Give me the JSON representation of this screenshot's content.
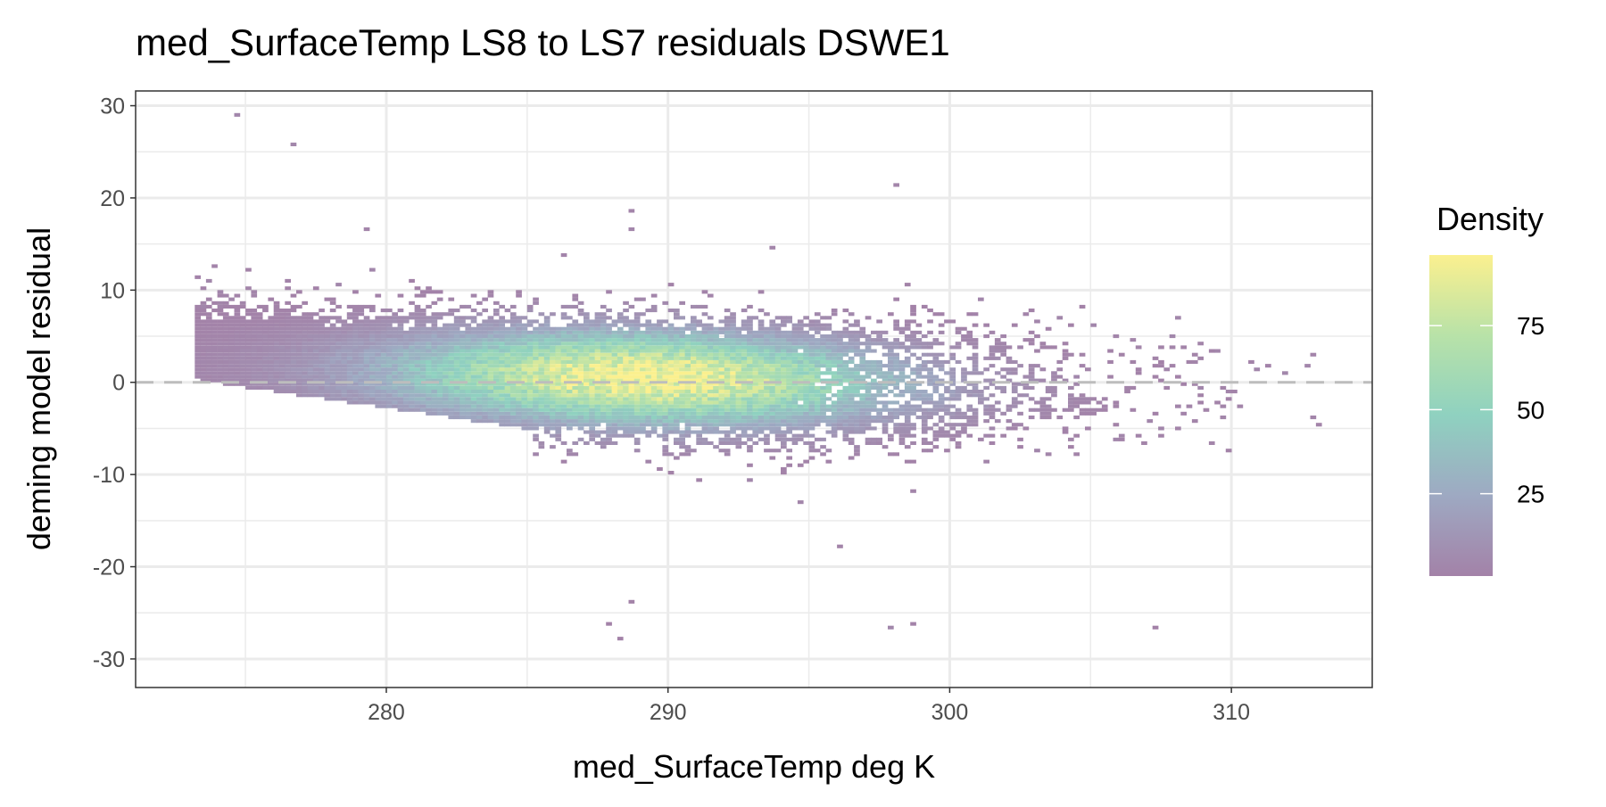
{
  "chart_data": {
    "type": "heatmap",
    "title": "med_SurfaceTemp LS8 to LS7 residuals DSWE1",
    "xlabel": "med_SurfaceTemp deg K",
    "ylabel": "deming model residual",
    "xlim": [
      271.1,
      315.0
    ],
    "ylim": [
      -33.1,
      31.6
    ],
    "x_ticks": [
      280,
      290,
      300,
      310
    ],
    "x_tick_labels": [
      "280",
      "290",
      "300",
      "310"
    ],
    "y_ticks": [
      30,
      20,
      10,
      0,
      -10,
      -20,
      -30
    ],
    "y_tick_labels": [
      "30",
      "20",
      "10",
      "0",
      "-10",
      "-20",
      "-30"
    ],
    "grid": true,
    "reference_line": {
      "y": 0,
      "style": "dashed",
      "color": "#bdbdbd"
    },
    "legend": {
      "title": "Density",
      "placement": "right",
      "range": [
        0.5,
        96
      ],
      "ticks": [
        75,
        50,
        25
      ],
      "tick_labels": [
        "75",
        "50",
        "25"
      ],
      "colors": [
        "#a382a8",
        "#9ea9c2",
        "#8fd1c0",
        "#b8e2a8",
        "#fbf08f"
      ]
    },
    "density_model": {
      "x_start": 273.2,
      "x_end": 313.0,
      "peak_density": 96,
      "peak_x": 289,
      "peak_y": -1,
      "bin_width_x": 0.2,
      "bin_height_y": 0.4
    }
  }
}
